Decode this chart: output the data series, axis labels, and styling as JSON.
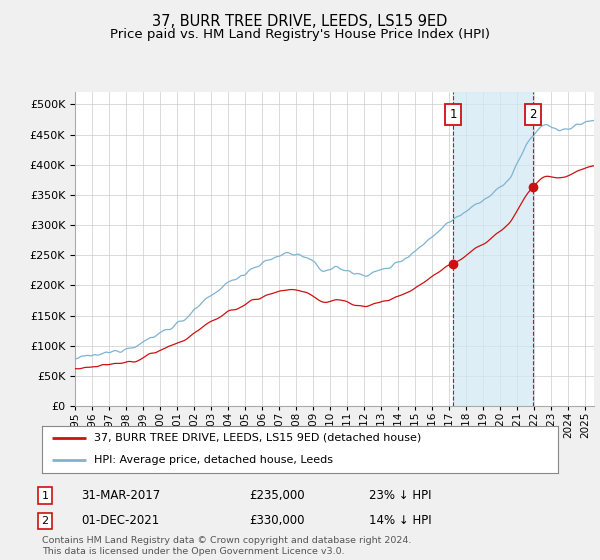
{
  "title": "37, BURR TREE DRIVE, LEEDS, LS15 9ED",
  "subtitle": "Price paid vs. HM Land Registry's House Price Index (HPI)",
  "ylim": [
    0,
    520000
  ],
  "yticks": [
    0,
    50000,
    100000,
    150000,
    200000,
    250000,
    300000,
    350000,
    400000,
    450000,
    500000
  ],
  "hpi_color": "#7fb3d3",
  "price_color": "#cc1111",
  "background_color": "#f0f0f0",
  "plot_bg_color": "#ffffff",
  "legend_label1": "37, BURR TREE DRIVE, LEEDS, LS15 9ED (detached house)",
  "legend_label2": "HPI: Average price, detached house, Leeds",
  "annotation1": [
    "1",
    "31-MAR-2017",
    "£235,000",
    "23% ↓ HPI"
  ],
  "annotation2": [
    "2",
    "01-DEC-2021",
    "£330,000",
    "14% ↓ HPI"
  ],
  "footer": "Contains HM Land Registry data © Crown copyright and database right 2024.\nThis data is licensed under the Open Government Licence v3.0.",
  "title_fontsize": 10.5,
  "subtitle_fontsize": 9.5,
  "shade_color": "#d0e8f5",
  "marker1_year": 2017.21,
  "marker2_year": 2021.92,
  "marker1_price": 235000,
  "marker2_price": 330000,
  "start_year": 1995,
  "end_year": 2025
}
